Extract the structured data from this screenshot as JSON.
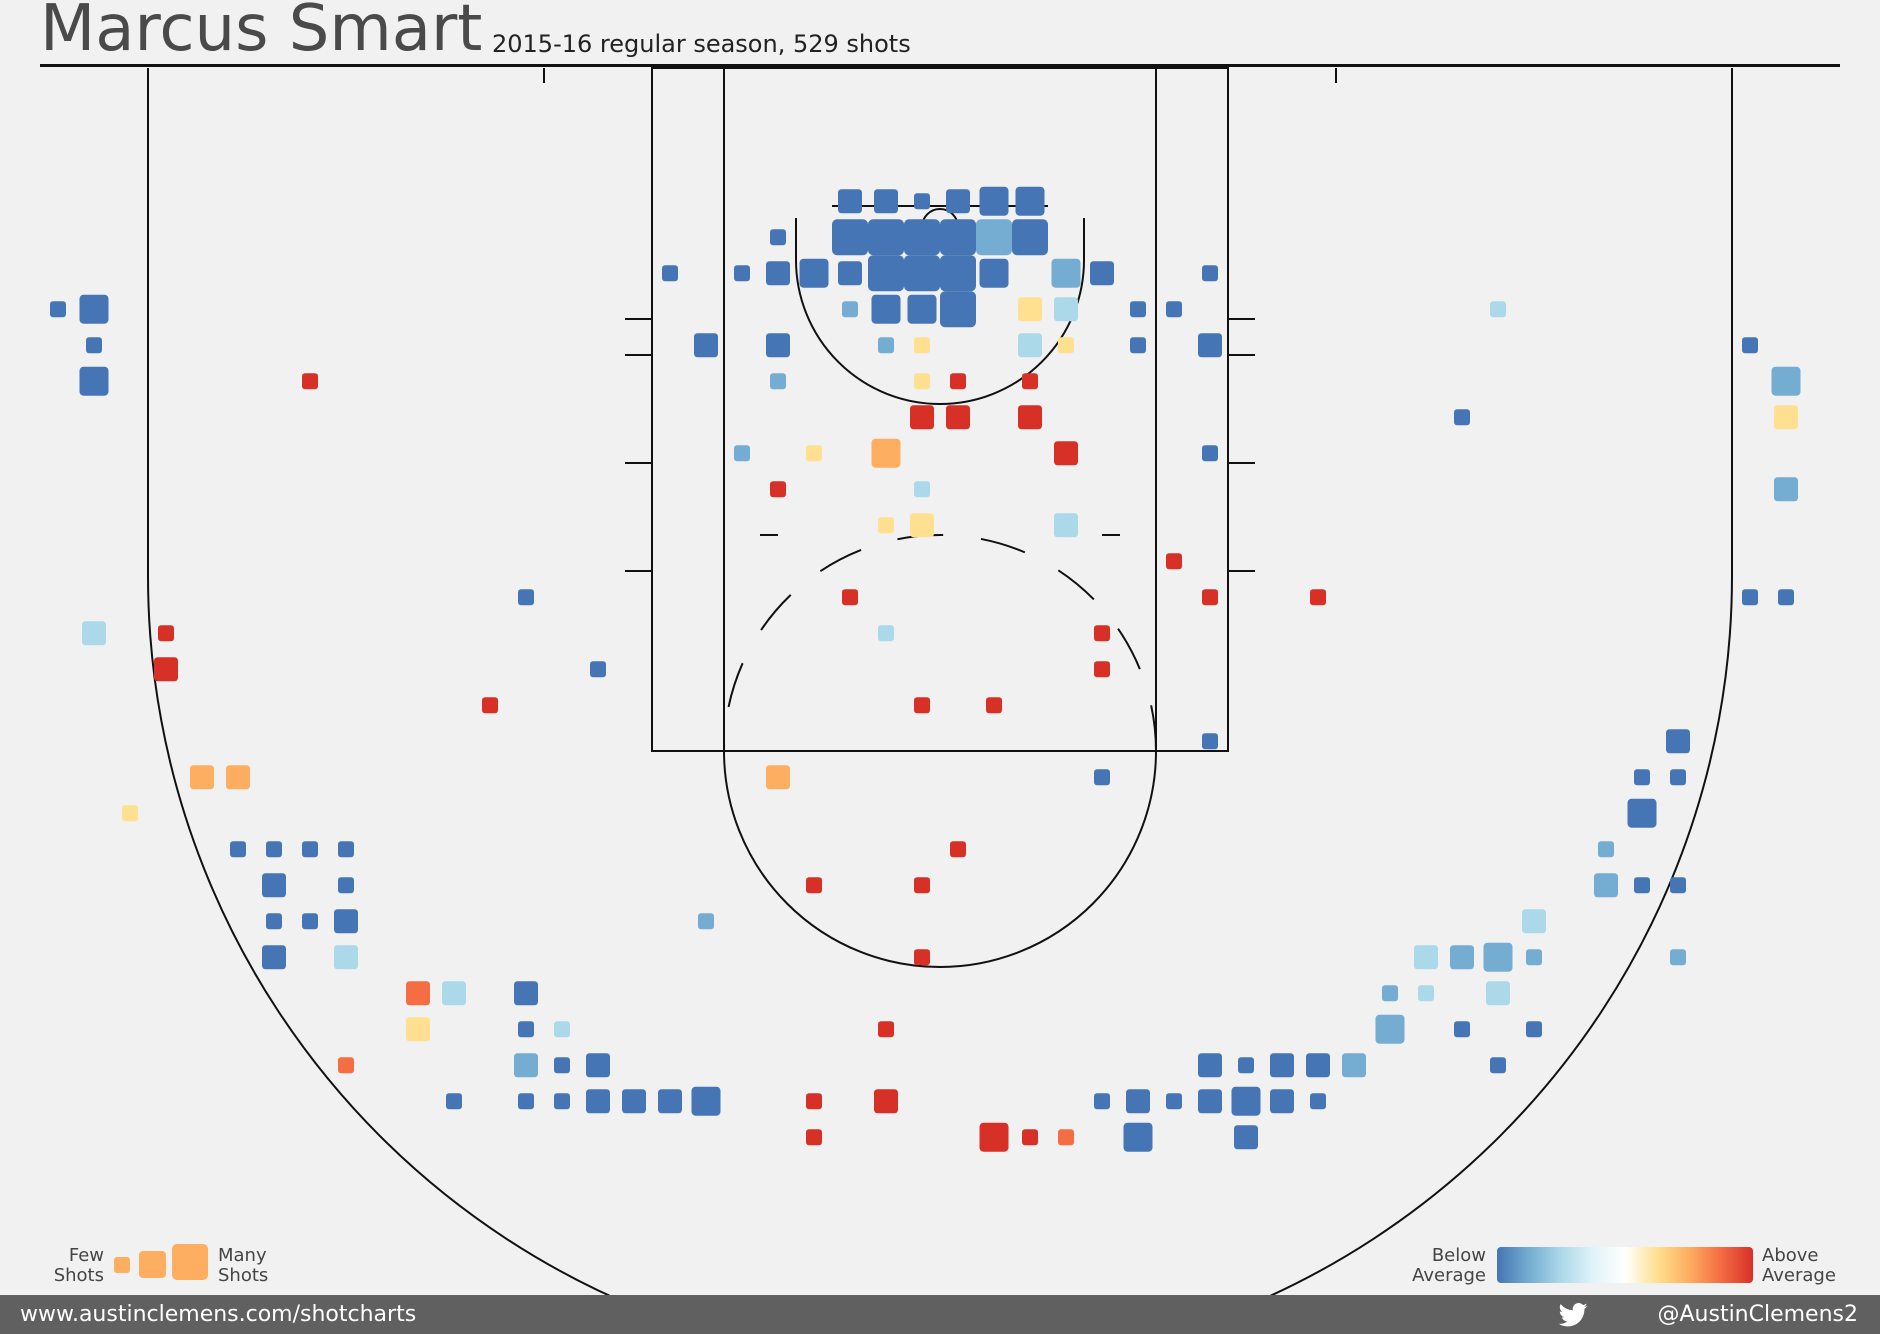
{
  "header": {
    "title": "Marcus Smart",
    "subtitle": "2015-16 regular season, 529 shots"
  },
  "legend": {
    "few_label": "Few\nShots",
    "many_label": "Many\nShots",
    "below_label": "Below\nAverage",
    "above_label": "Above\nAverage",
    "size_color": "#fdae61",
    "gradient": [
      "#4575b4",
      "#74add1",
      "#abd9e9",
      "#e0f3f8",
      "#ffffff",
      "#fee090",
      "#fdae61",
      "#f46d43",
      "#d73027"
    ]
  },
  "footer": {
    "website": "www.austinclemens.com/shotcharts",
    "twitter_handle": "@AustinClemens2",
    "twitter_icon": "twitter-bird-icon"
  },
  "colors": {
    "b": "#4575b4",
    "m": "#74add1",
    "l": "#abd9e9",
    "y": "#fee090",
    "o": "#fdae61",
    "t": "#f46d43",
    "r": "#d73027"
  },
  "chart_data": {
    "type": "heatmap",
    "description_units": "court feet; x = left/right of basket (positive right), y = distance from baseline; s = relative shot count bucket (1 few, 4 many); c = efficiency color key",
    "size_legend": [
      "few",
      "many"
    ],
    "color_legend": [
      "below average",
      "above average"
    ],
    "bins": [
      {
        "x": -2.5,
        "y": 3.7,
        "s": 2,
        "c": "b"
      },
      {
        "x": -1.5,
        "y": 3.7,
        "s": 2,
        "c": "b"
      },
      {
        "x": -0.5,
        "y": 3.7,
        "s": 1,
        "c": "b"
      },
      {
        "x": 0.5,
        "y": 3.7,
        "s": 2,
        "c": "b"
      },
      {
        "x": 1.5,
        "y": 3.7,
        "s": 3,
        "c": "b"
      },
      {
        "x": 2.5,
        "y": 3.7,
        "s": 3,
        "c": "b"
      },
      {
        "x": -4.5,
        "y": 4.7,
        "s": 1,
        "c": "b"
      },
      {
        "x": -2.5,
        "y": 4.7,
        "s": 4,
        "c": "b"
      },
      {
        "x": -1.5,
        "y": 4.7,
        "s": 4,
        "c": "b"
      },
      {
        "x": -0.5,
        "y": 4.7,
        "s": 4,
        "c": "b"
      },
      {
        "x": 0.5,
        "y": 4.7,
        "s": 4,
        "c": "b"
      },
      {
        "x": 1.5,
        "y": 4.7,
        "s": 4,
        "c": "m"
      },
      {
        "x": 2.5,
        "y": 4.7,
        "s": 4,
        "c": "b"
      },
      {
        "x": -7.5,
        "y": 5.7,
        "s": 1,
        "c": "b"
      },
      {
        "x": -5.5,
        "y": 5.7,
        "s": 1,
        "c": "b"
      },
      {
        "x": -4.5,
        "y": 5.7,
        "s": 2,
        "c": "b"
      },
      {
        "x": -3.5,
        "y": 5.7,
        "s": 3,
        "c": "b"
      },
      {
        "x": -2.5,
        "y": 5.7,
        "s": 2,
        "c": "b"
      },
      {
        "x": -1.5,
        "y": 5.7,
        "s": 4,
        "c": "b"
      },
      {
        "x": -0.5,
        "y": 5.7,
        "s": 4,
        "c": "b"
      },
      {
        "x": 0.5,
        "y": 5.7,
        "s": 4,
        "c": "b"
      },
      {
        "x": 1.5,
        "y": 5.7,
        "s": 3,
        "c": "b"
      },
      {
        "x": 3.5,
        "y": 5.7,
        "s": 3,
        "c": "m"
      },
      {
        "x": 4.5,
        "y": 5.7,
        "s": 2,
        "c": "b"
      },
      {
        "x": 7.5,
        "y": 5.7,
        "s": 1,
        "c": "b"
      },
      {
        "x": -24.5,
        "y": 6.7,
        "s": 1,
        "c": "b"
      },
      {
        "x": -23.5,
        "y": 6.7,
        "s": 3,
        "c": "b"
      },
      {
        "x": -2.5,
        "y": 6.7,
        "s": 1,
        "c": "m"
      },
      {
        "x": -1.5,
        "y": 6.7,
        "s": 3,
        "c": "b"
      },
      {
        "x": -0.5,
        "y": 6.7,
        "s": 3,
        "c": "b"
      },
      {
        "x": 0.5,
        "y": 6.7,
        "s": 4,
        "c": "b"
      },
      {
        "x": 2.5,
        "y": 6.7,
        "s": 2,
        "c": "y"
      },
      {
        "x": 3.5,
        "y": 6.7,
        "s": 2,
        "c": "l"
      },
      {
        "x": 5.5,
        "y": 6.7,
        "s": 1,
        "c": "b"
      },
      {
        "x": 6.5,
        "y": 6.7,
        "s": 1,
        "c": "b"
      },
      {
        "x": 15.5,
        "y": 6.7,
        "s": 1,
        "c": "l"
      },
      {
        "x": -23.5,
        "y": 7.7,
        "s": 1,
        "c": "b"
      },
      {
        "x": -6.5,
        "y": 7.7,
        "s": 2,
        "c": "b"
      },
      {
        "x": -4.5,
        "y": 7.7,
        "s": 2,
        "c": "b"
      },
      {
        "x": -1.5,
        "y": 7.7,
        "s": 1,
        "c": "m"
      },
      {
        "x": -0.5,
        "y": 7.7,
        "s": 1,
        "c": "y"
      },
      {
        "x": 2.5,
        "y": 7.7,
        "s": 2,
        "c": "l"
      },
      {
        "x": 3.5,
        "y": 7.7,
        "s": 1,
        "c": "y"
      },
      {
        "x": 5.5,
        "y": 7.7,
        "s": 1,
        "c": "b"
      },
      {
        "x": 7.5,
        "y": 7.7,
        "s": 2,
        "c": "b"
      },
      {
        "x": 22.5,
        "y": 7.7,
        "s": 1,
        "c": "b"
      },
      {
        "x": -23.5,
        "y": 8.7,
        "s": 3,
        "c": "b"
      },
      {
        "x": -17.5,
        "y": 8.7,
        "s": 1,
        "c": "r"
      },
      {
        "x": -4.5,
        "y": 8.7,
        "s": 1,
        "c": "m"
      },
      {
        "x": -0.5,
        "y": 8.7,
        "s": 1,
        "c": "y"
      },
      {
        "x": 0.5,
        "y": 8.7,
        "s": 1,
        "c": "r"
      },
      {
        "x": 2.5,
        "y": 8.7,
        "s": 1,
        "c": "r"
      },
      {
        "x": 23.5,
        "y": 8.7,
        "s": 3,
        "c": "m"
      },
      {
        "x": -0.5,
        "y": 9.7,
        "s": 2,
        "c": "r"
      },
      {
        "x": 0.5,
        "y": 9.7,
        "s": 2,
        "c": "r"
      },
      {
        "x": 2.5,
        "y": 9.7,
        "s": 2,
        "c": "r"
      },
      {
        "x": 14.5,
        "y": 9.7,
        "s": 1,
        "c": "b"
      },
      {
        "x": 23.5,
        "y": 9.7,
        "s": 2,
        "c": "y"
      },
      {
        "x": -5.5,
        "y": 10.7,
        "s": 1,
        "c": "m"
      },
      {
        "x": -3.5,
        "y": 10.7,
        "s": 1,
        "c": "y"
      },
      {
        "x": -1.5,
        "y": 10.7,
        "s": 3,
        "c": "o"
      },
      {
        "x": 3.5,
        "y": 10.7,
        "s": 2,
        "c": "r"
      },
      {
        "x": 7.5,
        "y": 10.7,
        "s": 1,
        "c": "b"
      },
      {
        "x": -4.5,
        "y": 11.7,
        "s": 1,
        "c": "r"
      },
      {
        "x": -0.5,
        "y": 11.7,
        "s": 1,
        "c": "l"
      },
      {
        "x": 23.5,
        "y": 11.7,
        "s": 2,
        "c": "m"
      },
      {
        "x": -1.5,
        "y": 12.7,
        "s": 1,
        "c": "y"
      },
      {
        "x": -0.5,
        "y": 12.7,
        "s": 2,
        "c": "y"
      },
      {
        "x": 3.5,
        "y": 12.7,
        "s": 2,
        "c": "l"
      },
      {
        "x": 6.5,
        "y": 13.7,
        "s": 1,
        "c": "r"
      },
      {
        "x": -11.5,
        "y": 14.7,
        "s": 1,
        "c": "b"
      },
      {
        "x": -2.5,
        "y": 14.7,
        "s": 1,
        "c": "r"
      },
      {
        "x": 7.5,
        "y": 14.7,
        "s": 1,
        "c": "r"
      },
      {
        "x": 10.5,
        "y": 14.7,
        "s": 1,
        "c": "r"
      },
      {
        "x": 22.5,
        "y": 14.7,
        "s": 1,
        "c": "b"
      },
      {
        "x": 23.5,
        "y": 14.7,
        "s": 1,
        "c": "b"
      },
      {
        "x": -23.5,
        "y": 15.7,
        "s": 2,
        "c": "l"
      },
      {
        "x": -21.5,
        "y": 15.7,
        "s": 1,
        "c": "r"
      },
      {
        "x": -1.5,
        "y": 15.7,
        "s": 1,
        "c": "l"
      },
      {
        "x": 4.5,
        "y": 15.7,
        "s": 1,
        "c": "r"
      },
      {
        "x": -21.5,
        "y": 16.7,
        "s": 2,
        "c": "r"
      },
      {
        "x": -9.5,
        "y": 16.7,
        "s": 1,
        "c": "b"
      },
      {
        "x": 4.5,
        "y": 16.7,
        "s": 1,
        "c": "r"
      },
      {
        "x": -12.5,
        "y": 17.7,
        "s": 1,
        "c": "r"
      },
      {
        "x": -0.5,
        "y": 17.7,
        "s": 1,
        "c": "r"
      },
      {
        "x": 1.5,
        "y": 17.7,
        "s": 1,
        "c": "r"
      },
      {
        "x": 7.5,
        "y": 18.7,
        "s": 1,
        "c": "b"
      },
      {
        "x": 20.5,
        "y": 18.7,
        "s": 2,
        "c": "b"
      },
      {
        "x": -20.5,
        "y": 19.7,
        "s": 2,
        "c": "o"
      },
      {
        "x": -19.5,
        "y": 19.7,
        "s": 2,
        "c": "o"
      },
      {
        "x": -4.5,
        "y": 19.7,
        "s": 2,
        "c": "o"
      },
      {
        "x": 4.5,
        "y": 19.7,
        "s": 1,
        "c": "b"
      },
      {
        "x": 19.5,
        "y": 19.7,
        "s": 1,
        "c": "b"
      },
      {
        "x": 20.5,
        "y": 19.7,
        "s": 1,
        "c": "b"
      },
      {
        "x": -22.5,
        "y": 20.7,
        "s": 1,
        "c": "y"
      },
      {
        "x": 19.5,
        "y": 20.7,
        "s": 3,
        "c": "b"
      },
      {
        "x": -19.5,
        "y": 21.7,
        "s": 1,
        "c": "b"
      },
      {
        "x": -18.5,
        "y": 21.7,
        "s": 1,
        "c": "b"
      },
      {
        "x": -17.5,
        "y": 21.7,
        "s": 1,
        "c": "b"
      },
      {
        "x": -16.5,
        "y": 21.7,
        "s": 1,
        "c": "b"
      },
      {
        "x": 0.5,
        "y": 21.7,
        "s": 1,
        "c": "r"
      },
      {
        "x": 18.5,
        "y": 21.7,
        "s": 1,
        "c": "m"
      },
      {
        "x": -18.5,
        "y": 22.7,
        "s": 2,
        "c": "b"
      },
      {
        "x": -16.5,
        "y": 22.7,
        "s": 1,
        "c": "b"
      },
      {
        "x": -3.5,
        "y": 22.7,
        "s": 1,
        "c": "r"
      },
      {
        "x": -0.5,
        "y": 22.7,
        "s": 1,
        "c": "r"
      },
      {
        "x": 18.5,
        "y": 22.7,
        "s": 2,
        "c": "m"
      },
      {
        "x": 19.5,
        "y": 22.7,
        "s": 1,
        "c": "b"
      },
      {
        "x": 20.5,
        "y": 22.7,
        "s": 1,
        "c": "b"
      },
      {
        "x": -18.5,
        "y": 23.7,
        "s": 1,
        "c": "b"
      },
      {
        "x": -17.5,
        "y": 23.7,
        "s": 1,
        "c": "b"
      },
      {
        "x": -16.5,
        "y": 23.7,
        "s": 2,
        "c": "b"
      },
      {
        "x": -6.5,
        "y": 23.7,
        "s": 1,
        "c": "m"
      },
      {
        "x": 16.5,
        "y": 23.7,
        "s": 2,
        "c": "l"
      },
      {
        "x": -18.5,
        "y": 24.7,
        "s": 2,
        "c": "b"
      },
      {
        "x": -16.5,
        "y": 24.7,
        "s": 2,
        "c": "l"
      },
      {
        "x": -0.5,
        "y": 24.7,
        "s": 1,
        "c": "r"
      },
      {
        "x": 13.5,
        "y": 24.7,
        "s": 2,
        "c": "l"
      },
      {
        "x": 14.5,
        "y": 24.7,
        "s": 2,
        "c": "m"
      },
      {
        "x": 15.5,
        "y": 24.7,
        "s": 3,
        "c": "m"
      },
      {
        "x": 16.5,
        "y": 24.7,
        "s": 1,
        "c": "m"
      },
      {
        "x": 20.5,
        "y": 24.7,
        "s": 1,
        "c": "m"
      },
      {
        "x": -14.5,
        "y": 25.7,
        "s": 2,
        "c": "t"
      },
      {
        "x": -13.5,
        "y": 25.7,
        "s": 2,
        "c": "l"
      },
      {
        "x": -11.5,
        "y": 25.7,
        "s": 2,
        "c": "b"
      },
      {
        "x": 12.5,
        "y": 25.7,
        "s": 1,
        "c": "m"
      },
      {
        "x": 13.5,
        "y": 25.7,
        "s": 1,
        "c": "l"
      },
      {
        "x": 15.5,
        "y": 25.7,
        "s": 2,
        "c": "l"
      },
      {
        "x": -14.5,
        "y": 26.7,
        "s": 2,
        "c": "y"
      },
      {
        "x": -11.5,
        "y": 26.7,
        "s": 1,
        "c": "b"
      },
      {
        "x": -10.5,
        "y": 26.7,
        "s": 1,
        "c": "l"
      },
      {
        "x": -1.5,
        "y": 26.7,
        "s": 1,
        "c": "r"
      },
      {
        "x": 12.5,
        "y": 26.7,
        "s": 3,
        "c": "m"
      },
      {
        "x": 14.5,
        "y": 26.7,
        "s": 1,
        "c": "b"
      },
      {
        "x": 16.5,
        "y": 26.7,
        "s": 1,
        "c": "b"
      },
      {
        "x": -16.5,
        "y": 27.7,
        "s": 1,
        "c": "t"
      },
      {
        "x": -11.5,
        "y": 27.7,
        "s": 2,
        "c": "m"
      },
      {
        "x": -10.5,
        "y": 27.7,
        "s": 1,
        "c": "b"
      },
      {
        "x": -9.5,
        "y": 27.7,
        "s": 2,
        "c": "b"
      },
      {
        "x": 7.5,
        "y": 27.7,
        "s": 2,
        "c": "b"
      },
      {
        "x": 8.5,
        "y": 27.7,
        "s": 1,
        "c": "b"
      },
      {
        "x": 9.5,
        "y": 27.7,
        "s": 2,
        "c": "b"
      },
      {
        "x": 10.5,
        "y": 27.7,
        "s": 2,
        "c": "b"
      },
      {
        "x": 11.5,
        "y": 27.7,
        "s": 2,
        "c": "m"
      },
      {
        "x": 15.5,
        "y": 27.7,
        "s": 1,
        "c": "b"
      },
      {
        "x": -13.5,
        "y": 28.7,
        "s": 1,
        "c": "b"
      },
      {
        "x": -11.5,
        "y": 28.7,
        "s": 1,
        "c": "b"
      },
      {
        "x": -10.5,
        "y": 28.7,
        "s": 1,
        "c": "b"
      },
      {
        "x": -9.5,
        "y": 28.7,
        "s": 2,
        "c": "b"
      },
      {
        "x": -8.5,
        "y": 28.7,
        "s": 2,
        "c": "b"
      },
      {
        "x": -7.5,
        "y": 28.7,
        "s": 2,
        "c": "b"
      },
      {
        "x": -6.5,
        "y": 28.7,
        "s": 3,
        "c": "b"
      },
      {
        "x": -3.5,
        "y": 28.7,
        "s": 1,
        "c": "r"
      },
      {
        "x": -1.5,
        "y": 28.7,
        "s": 2,
        "c": "r"
      },
      {
        "x": 4.5,
        "y": 28.7,
        "s": 1,
        "c": "b"
      },
      {
        "x": 5.5,
        "y": 28.7,
        "s": 2,
        "c": "b"
      },
      {
        "x": 6.5,
        "y": 28.7,
        "s": 1,
        "c": "b"
      },
      {
        "x": 7.5,
        "y": 28.7,
        "s": 2,
        "c": "b"
      },
      {
        "x": 8.5,
        "y": 28.7,
        "s": 3,
        "c": "b"
      },
      {
        "x": 9.5,
        "y": 28.7,
        "s": 2,
        "c": "b"
      },
      {
        "x": 10.5,
        "y": 28.7,
        "s": 1,
        "c": "b"
      },
      {
        "x": -3.5,
        "y": 29.7,
        "s": 1,
        "c": "r"
      },
      {
        "x": 1.5,
        "y": 29.7,
        "s": 3,
        "c": "r"
      },
      {
        "x": 2.5,
        "y": 29.7,
        "s": 1,
        "c": "r"
      },
      {
        "x": 3.5,
        "y": 29.7,
        "s": 1,
        "c": "t"
      },
      {
        "x": 5.5,
        "y": 29.7,
        "s": 3,
        "c": "b"
      },
      {
        "x": 8.5,
        "y": 29.7,
        "s": 2,
        "c": "b"
      }
    ]
  }
}
